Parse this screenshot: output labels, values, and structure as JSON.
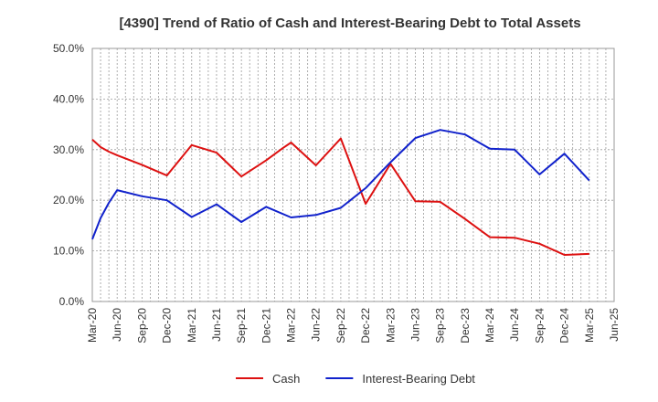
{
  "chart_data": {
    "type": "line",
    "title": "[4390]  Trend of Ratio of Cash and Interest-Bearing Debt to Total Assets",
    "xlabel": "",
    "ylabel": "",
    "x": [
      "Mar-20",
      "Apr-20",
      "May-20",
      "Jun-20",
      "Jul-20",
      "Aug-20",
      "Sep-20",
      "Oct-20",
      "Nov-20",
      "Dec-20",
      "Jan-21",
      "Feb-21",
      "Mar-21",
      "Apr-21",
      "May-21",
      "Jun-21",
      "Jul-21",
      "Aug-21",
      "Sep-21",
      "Oct-21",
      "Nov-21",
      "Dec-21",
      "Jan-22",
      "Feb-22",
      "Mar-22",
      "Apr-22",
      "May-22",
      "Jun-22",
      "Jul-22",
      "Aug-22",
      "Sep-22",
      "Oct-22",
      "Nov-22",
      "Dec-22",
      "Jan-23",
      "Feb-23",
      "Mar-23",
      "Apr-23",
      "May-23",
      "Jun-23",
      "Jul-23",
      "Aug-23",
      "Sep-23",
      "Oct-23",
      "Nov-23",
      "Dec-23",
      "Jan-24",
      "Feb-24",
      "Mar-24",
      "Apr-24",
      "May-24",
      "Jun-24",
      "Jul-24",
      "Aug-24",
      "Sep-24",
      "Oct-24",
      "Nov-24",
      "Dec-24",
      "Jan-25",
      "Feb-25",
      "Mar-25",
      "Apr-25",
      "May-25",
      "Jun-25"
    ],
    "x_tick_labels": [
      "Mar-20",
      "Jun-20",
      "Sep-20",
      "Dec-20",
      "Mar-21",
      "Jun-21",
      "Sep-21",
      "Dec-21",
      "Mar-22",
      "Jun-22",
      "Sep-22",
      "Dec-22",
      "Mar-23",
      "Jun-23",
      "Sep-23",
      "Dec-23",
      "Mar-24",
      "Jun-24",
      "Sep-24",
      "Dec-24",
      "Mar-25",
      "Jun-25"
    ],
    "ylim": [
      0,
      50
    ],
    "y_ticks": [
      "0.0%",
      "10.0%",
      "20.0%",
      "30.0%",
      "40.0%",
      "50.0%"
    ],
    "y_tick_values": [
      0,
      10,
      20,
      30,
      40,
      50
    ],
    "grid": true,
    "legend_position": "bottom-center",
    "series": [
      {
        "name": "Cash",
        "color": "#dd1111",
        "points": [
          {
            "x": "Mar-20",
            "y": 32.0
          },
          {
            "x": "Apr-20",
            "y": 30.5
          },
          {
            "x": "May-20",
            "y": 29.6
          },
          {
            "x": "Jun-20",
            "y": 28.9
          },
          {
            "x": "Sep-20",
            "y": 27.0
          },
          {
            "x": "Dec-20",
            "y": 24.9
          },
          {
            "x": "Mar-21",
            "y": 30.9
          },
          {
            "x": "Jun-21",
            "y": 29.4
          },
          {
            "x": "Sep-21",
            "y": 24.7
          },
          {
            "x": "Dec-21",
            "y": 27.9
          },
          {
            "x": "Feb-22",
            "y": 30.3
          },
          {
            "x": "Mar-22",
            "y": 31.4
          },
          {
            "x": "Jun-22",
            "y": 26.9
          },
          {
            "x": "Sep-22",
            "y": 32.2
          },
          {
            "x": "Dec-22",
            "y": 19.3
          },
          {
            "x": "Mar-23",
            "y": 27.2
          },
          {
            "x": "Jun-23",
            "y": 19.8
          },
          {
            "x": "Sep-23",
            "y": 19.7
          },
          {
            "x": "Dec-23",
            "y": 16.3
          },
          {
            "x": "Mar-24",
            "y": 12.7
          },
          {
            "x": "Jun-24",
            "y": 12.6
          },
          {
            "x": "Sep-24",
            "y": 11.4
          },
          {
            "x": "Dec-24",
            "y": 9.2
          },
          {
            "x": "Mar-25",
            "y": 9.4
          }
        ]
      },
      {
        "name": "Interest-Bearing Debt",
        "color": "#1122cc",
        "points": [
          {
            "x": "Mar-20",
            "y": 12.3
          },
          {
            "x": "Apr-20",
            "y": 16.5
          },
          {
            "x": "May-20",
            "y": 19.5
          },
          {
            "x": "Jun-20",
            "y": 22.0
          },
          {
            "x": "Sep-20",
            "y": 20.8
          },
          {
            "x": "Dec-20",
            "y": 20.0
          },
          {
            "x": "Mar-21",
            "y": 16.7
          },
          {
            "x": "Jun-21",
            "y": 19.2
          },
          {
            "x": "Sep-21",
            "y": 15.7
          },
          {
            "x": "Dec-21",
            "y": 18.7
          },
          {
            "x": "Mar-22",
            "y": 16.6
          },
          {
            "x": "Jun-22",
            "y": 17.1
          },
          {
            "x": "Sep-22",
            "y": 18.5
          },
          {
            "x": "Dec-22",
            "y": 22.4
          },
          {
            "x": "Mar-23",
            "y": 27.5
          },
          {
            "x": "Jun-23",
            "y": 32.3
          },
          {
            "x": "Sep-23",
            "y": 33.9
          },
          {
            "x": "Dec-23",
            "y": 33.0
          },
          {
            "x": "Mar-24",
            "y": 30.2
          },
          {
            "x": "Jun-24",
            "y": 30.0
          },
          {
            "x": "Sep-24",
            "y": 25.1
          },
          {
            "x": "Dec-24",
            "y": 29.2
          },
          {
            "x": "Mar-25",
            "y": 23.9
          }
        ]
      }
    ]
  }
}
